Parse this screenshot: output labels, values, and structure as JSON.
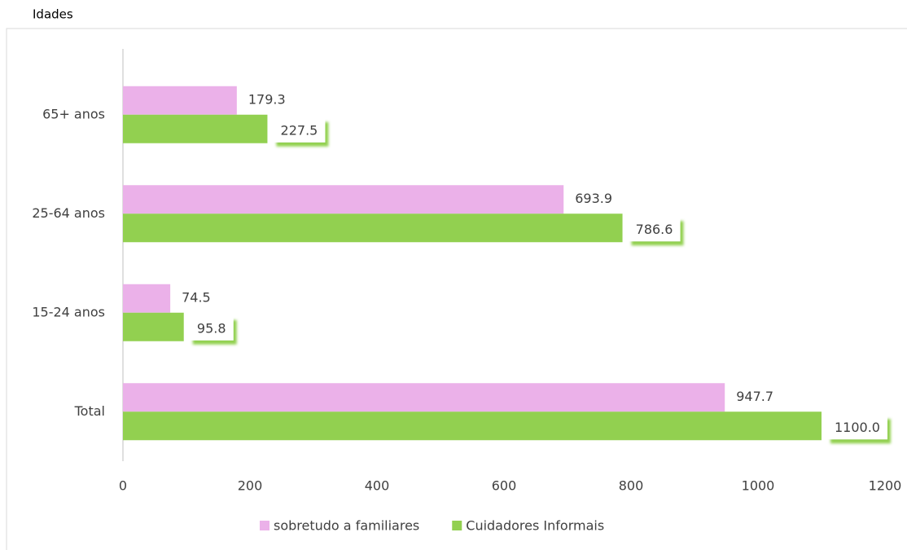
{
  "chart_data": {
    "type": "hbar",
    "title": "Idades",
    "categories": [
      "65+ anos",
      "25-64 anos",
      "15-24 anos",
      "Total"
    ],
    "series": [
      {
        "name": "sobretudo a familiares",
        "color": "#ebb1e9",
        "values": [
          179.3,
          693.9,
          74.5,
          947.7
        ],
        "value_labels": [
          "179.3",
          "693.9",
          "74.5",
          "947.7"
        ]
      },
      {
        "name": "Cuidadores Informais",
        "color": "#92d050",
        "values": [
          227.5,
          786.6,
          95.8,
          1100.0
        ],
        "value_labels": [
          "227.5",
          "786.6",
          "95.8",
          "1100.0"
        ]
      }
    ],
    "xlim": [
      0,
      1200
    ],
    "xticks": [
      0,
      200,
      400,
      600,
      800,
      1000,
      1200
    ],
    "grid": false,
    "legend": "bottom"
  }
}
